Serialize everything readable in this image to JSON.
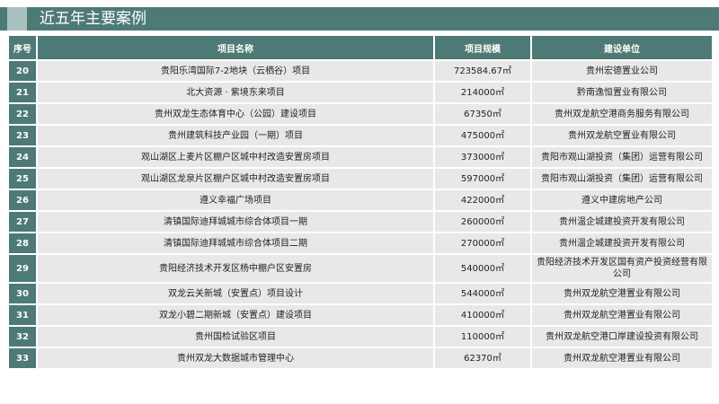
{
  "header": {
    "title": "近五年主要案例"
  },
  "table": {
    "columns": [
      "序号",
      "项目名称",
      "项目规模",
      "建设单位"
    ],
    "rows": [
      [
        "20",
        "贵阳乐湾国际7-2地块（云栖谷）项目",
        "723584.67㎡",
        "贵州宏德置业公司"
      ],
      [
        "21",
        "北大资源 · 紫境东来项目",
        "214000㎡",
        "黔南逸恒置业有限公司"
      ],
      [
        "22",
        "贵州双龙生态体育中心（公园）建设项目",
        "67350㎡",
        "贵州双龙航空港商务服务有限公司"
      ],
      [
        "23",
        "贵州建筑科技产业园（一期）项目",
        "475000㎡",
        "贵州双龙航空置业有限公司"
      ],
      [
        "24",
        "观山湖区上麦片区棚户区城中村改造安置房项目",
        "373000㎡",
        "贵阳市观山湖投资（集团）运营有限公司"
      ],
      [
        "25",
        "观山湖区龙泉片区棚户区城中村改造安置房项目",
        "597000㎡",
        "贵阳市观山湖投资（集团）运营有限公司"
      ],
      [
        "26",
        "遵义幸福广场项目",
        "422000㎡",
        "遵义中建房地产公司"
      ],
      [
        "27",
        "清镇国际迪拜城城市综合体项目一期",
        "260000㎡",
        "贵州温企城建投资开发有限公司"
      ],
      [
        "28",
        "清镇国际迪拜城城市综合体项目二期",
        "270000㎡",
        "贵州温企城建投资开发有限公司"
      ],
      [
        "29",
        "贵阳经济技术开发区杨中棚户区安置房",
        "540000㎡",
        "贵阳经济技术开发区国有资产投资经营有限公司"
      ],
      [
        "30",
        "双龙云关新城（安置点）项目设计",
        "544000㎡",
        "贵州双龙航空港置业有限公司"
      ],
      [
        "31",
        "双龙小碧二期新城（安置点）建设项目",
        "410000㎡",
        "贵州双龙航空港置业有限公司"
      ],
      [
        "32",
        "贵州国检试验区项目",
        "110000㎡",
        "贵州双龙航空港口岸建设投资有限公司"
      ],
      [
        "33",
        "贵州双龙大数据城市管理中心",
        "62370㎡",
        "贵州双龙航空港置业有限公司"
      ]
    ]
  }
}
